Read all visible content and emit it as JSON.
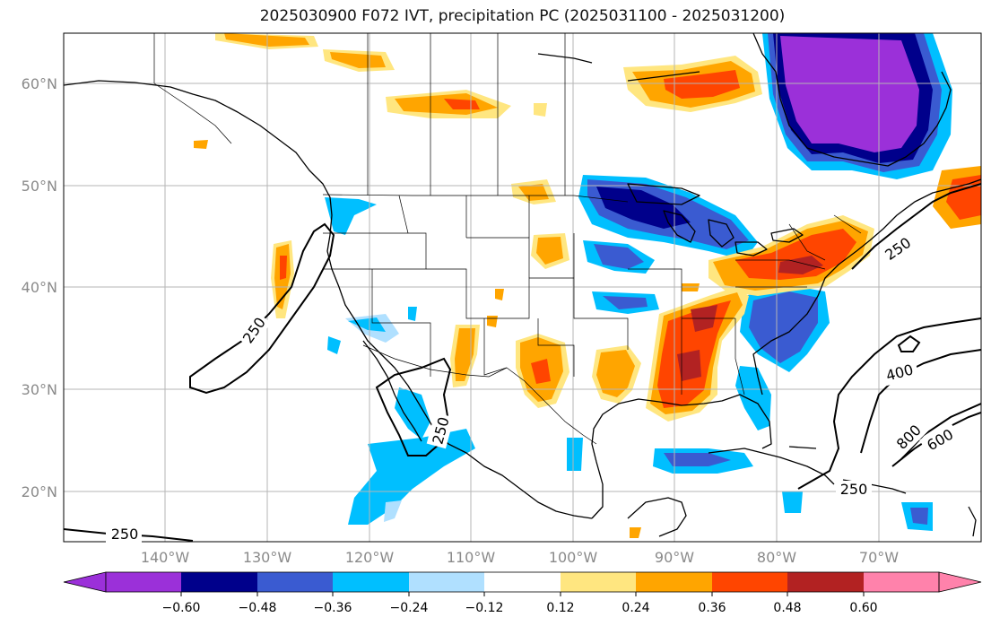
{
  "title": "2025030900 F072 IVT, precipitation PC (2025031100 - 2025031200)",
  "lat_labels": [
    "60°N",
    "50°N",
    "40°N",
    "30°N",
    "20°N"
  ],
  "lon_labels": [
    "140°W",
    "130°W",
    "120°W",
    "110°W",
    "100°W",
    "90°W",
    "80°W",
    "70°W"
  ],
  "ivt_contour_labels": [
    "250",
    "250",
    "250",
    "250",
    "250",
    "400",
    "600",
    "800"
  ],
  "colorbar": {
    "ticks": [
      "−0.60",
      "−0.48",
      "−0.36",
      "−0.24",
      "−0.12",
      "0.12",
      "0.24",
      "0.36",
      "0.48",
      "0.60"
    ],
    "colors": [
      "#9b30d9",
      "#00008b",
      "#3a5bd1",
      "#00bfff",
      "#b0e0ff",
      "#ffffff",
      "#ffe680",
      "#ffa500",
      "#ff4500",
      "#b22222",
      "#ff82ab"
    ]
  },
  "colors": {
    "coast": "#000000",
    "grid": "#b5b5b5",
    "pc_purple": "#9b30d9",
    "pc_navy": "#00008b",
    "pc_blue": "#3a5bd1",
    "pc_cyan": "#00bfff",
    "pc_lightblue": "#b0e0ff",
    "pc_yellow": "#ffe680",
    "pc_orange": "#ffa500",
    "pc_redorange": "#ff4500",
    "pc_darkred": "#b22222",
    "pc_pink": "#ff82ab"
  }
}
